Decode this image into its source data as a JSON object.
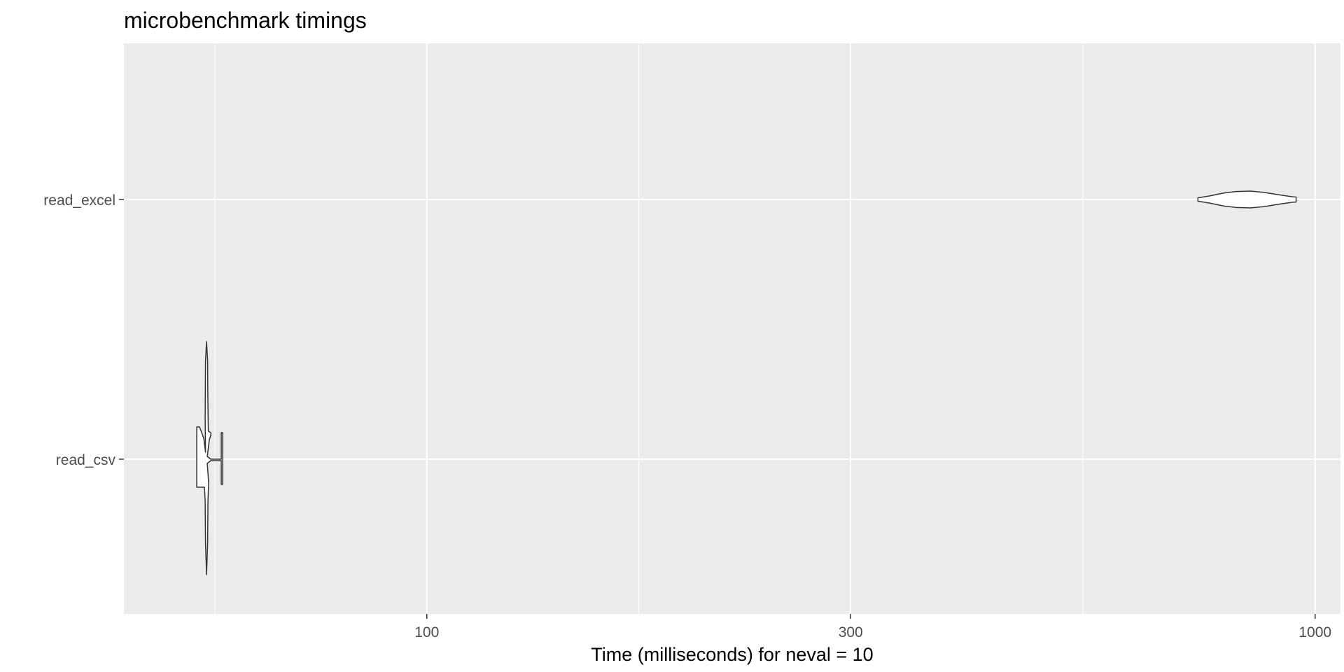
{
  "chart_data": {
    "type": "violin",
    "title": "microbenchmark timings",
    "xlabel": "Time (milliseconds) for neval = 10",
    "ylabel": "",
    "x_scale": "log10",
    "xlim": [
      45.6,
      1068
    ],
    "x_ticks": [
      100,
      300,
      1000
    ],
    "x_tick_labels": [
      "100",
      "300",
      "1000"
    ],
    "categories": [
      "read_excel",
      "read_csv"
    ],
    "grid": true,
    "legend": "none",
    "series": [
      {
        "name": "read_excel",
        "min": 738,
        "max": 952,
        "mode": 845,
        "profile": [
          [
            738,
            0.2
          ],
          [
            760,
            0.42
          ],
          [
            790,
            0.78
          ],
          [
            815,
            0.95
          ],
          [
            845,
            1.0
          ],
          [
            875,
            0.85
          ],
          [
            905,
            0.6
          ],
          [
            930,
            0.42
          ],
          [
            945,
            0.32
          ],
          [
            952,
            0.3
          ]
        ]
      },
      {
        "name": "read_csv",
        "min": 55.2,
        "max": 58.5,
        "points": [
          55.2,
          56.3,
          56.4,
          56.5,
          56.6,
          56.8,
          57.0,
          57.5,
          58.5
        ]
      }
    ],
    "colors": {
      "panel": "#ebebeb",
      "grid": "#ffffff",
      "violin_fill": "#ffffff",
      "violin_stroke": "#333333",
      "tick_text": "#4d4d4d"
    }
  }
}
